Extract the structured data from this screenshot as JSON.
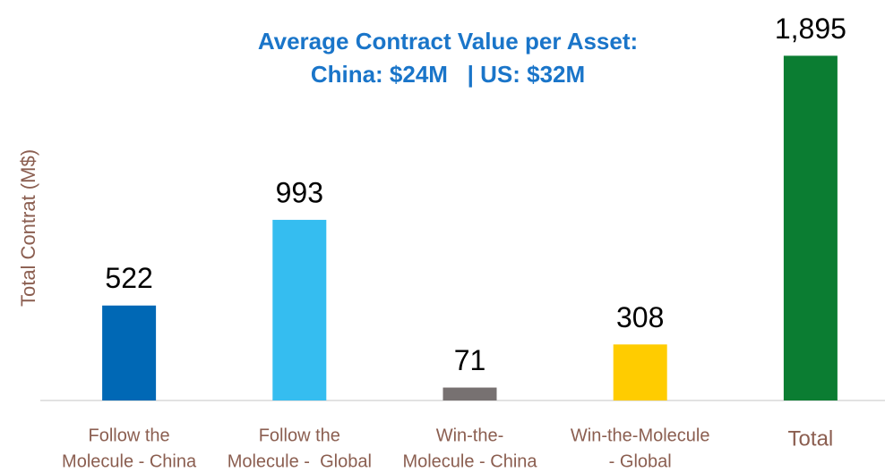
{
  "chart_data": {
    "type": "bar",
    "subtitle": [
      "Average Contract Value per Asset:",
      "China: $24M   | US: $32M"
    ],
    "y_label": "Total Contrat (M$)",
    "categories": [
      [
        "Follow the",
        "Molecule - China"
      ],
      [
        "Follow the",
        "Molecule -  Global"
      ],
      [
        "Win-the-",
        "Molecule - China"
      ],
      [
        "Win-the-Molecule",
        "- Global"
      ],
      [
        "Total"
      ]
    ],
    "values": [
      522,
      993,
      71,
      308,
      1895
    ],
    "value_labels": [
      "522",
      "993",
      "71",
      "308",
      "1,895"
    ],
    "colors": [
      "#0068b5",
      "#35bdf0",
      "#777171",
      "#ffcc00",
      "#0b7d32"
    ],
    "ylim": [
      0,
      2000
    ]
  }
}
